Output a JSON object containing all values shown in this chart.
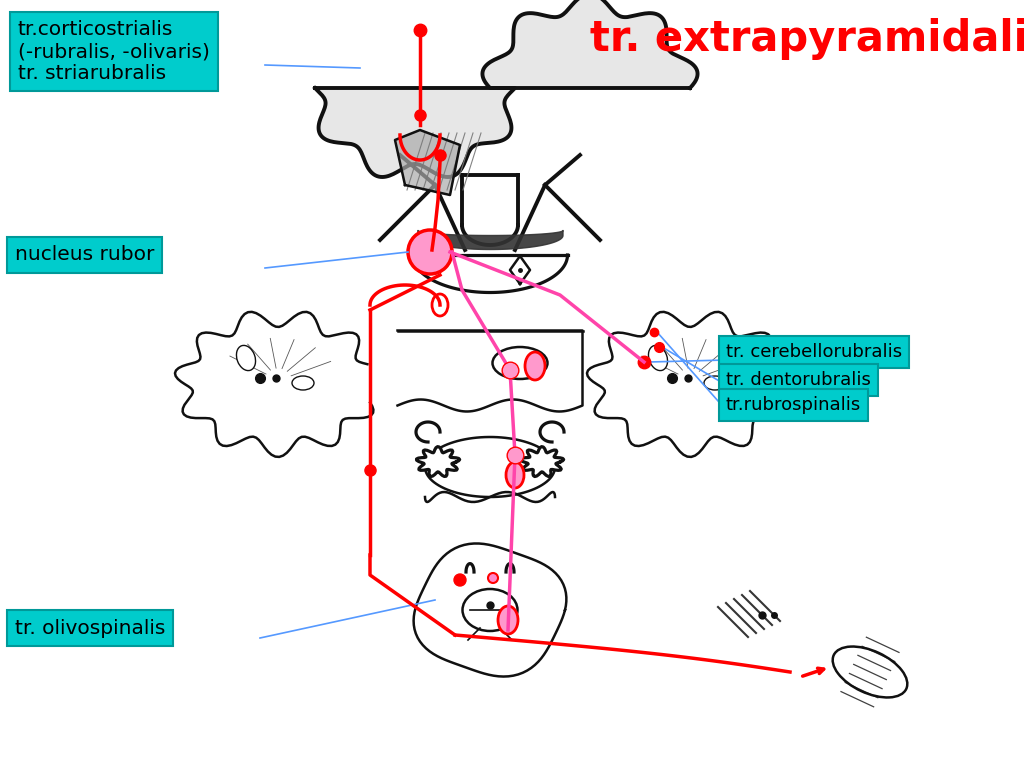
{
  "title": "tr. extrapyramidalis",
  "title_color": "#ff0000",
  "title_fontsize": 30,
  "bg_color": "#ffffff",
  "label_bg_color": "#00cccc",
  "label_edge_color": "#009999",
  "labels": {
    "cortico": "tr.corticostrialis\n(-rubralis, -olivaris)\ntr. striarubralis",
    "nucleus": "nucleus rubor",
    "cerebello": "tr. cerebellorubralis",
    "dento": "tr. dentorubralis",
    "rubro": "tr.rubrospinalis",
    "olivo": "tr. olivospinalis"
  },
  "red_color": "#ff0000",
  "pink_color": "#ff44aa",
  "blue_color": "#5599ff",
  "dark_color": "#111111",
  "gray_color": "#999999",
  "lgray_color": "#cccccc"
}
